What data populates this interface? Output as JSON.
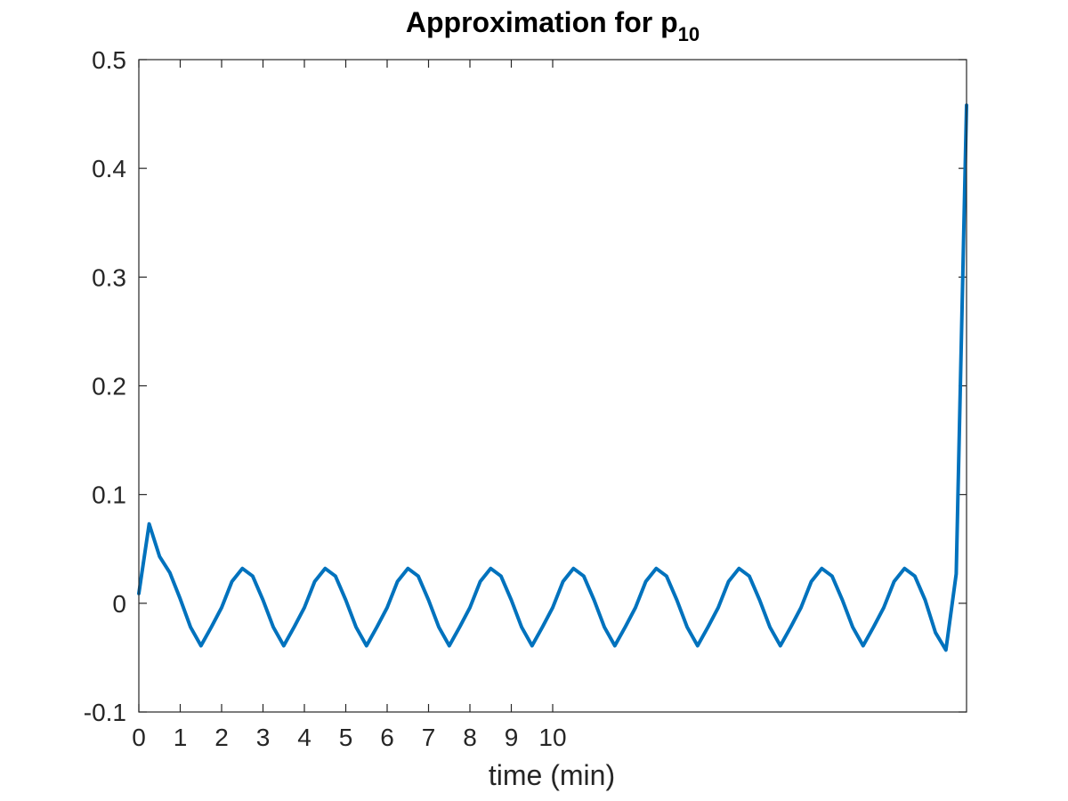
{
  "chart_data": {
    "type": "line",
    "title": "Approximation for p",
    "title_subscript": "10",
    "xlabel": "time (min)",
    "ylabel": "",
    "xlim": [
      0,
      20
    ],
    "ylim": [
      -0.1,
      0.5
    ],
    "xticks": [
      0,
      1,
      2,
      3,
      4,
      5,
      6,
      7,
      8,
      9,
      10
    ],
    "xtick_labels": [
      "0",
      "1",
      "2",
      "3",
      "4",
      "5",
      "6",
      "7",
      "8",
      "9",
      "10"
    ],
    "yticks": [
      -0.1,
      0,
      0.1,
      0.2,
      0.3,
      0.4,
      0.5
    ],
    "ytick_labels": [
      "-0.1",
      "0",
      "0.1",
      "0.2",
      "0.3",
      "0.4",
      "0.5"
    ],
    "grid": false,
    "series": [
      {
        "color": "#0072BD",
        "x": [
          0,
          0.25,
          0.5,
          0.75,
          1.0,
          1.25,
          1.5,
          1.75,
          2.0,
          2.25,
          2.5,
          2.75,
          3.0,
          3.25,
          3.5,
          3.75,
          4.0,
          4.25,
          4.5,
          4.75,
          5.0,
          5.25,
          5.5,
          5.75,
          6.0,
          6.25,
          6.5,
          6.75,
          7.0,
          7.25,
          7.5,
          7.75,
          8.0,
          8.25,
          8.5,
          8.75,
          9.0,
          9.25,
          9.5,
          9.75,
          10.0,
          10.25,
          10.5,
          10.75,
          11.0,
          11.25,
          11.5,
          11.75,
          12.0,
          12.25,
          12.5,
          12.75,
          13.0,
          13.25,
          13.5,
          13.75,
          14.0,
          14.25,
          14.5,
          14.75,
          15.0,
          15.25,
          15.5,
          15.75,
          16.0,
          16.25,
          16.5,
          16.75,
          17.0,
          17.25,
          17.5,
          17.75,
          18.0,
          18.25,
          18.5,
          18.75,
          19.0,
          19.25,
          19.5,
          19.75,
          20.0
        ],
        "y": [
          0.009,
          0.073,
          0.043,
          0.028,
          0.004,
          -0.022,
          -0.039,
          -0.022,
          -0.004,
          0.02,
          0.032,
          0.025,
          0.003,
          -0.022,
          -0.039,
          -0.022,
          -0.004,
          0.02,
          0.032,
          0.025,
          0.003,
          -0.022,
          -0.039,
          -0.022,
          -0.004,
          0.02,
          0.032,
          0.025,
          0.003,
          -0.022,
          -0.039,
          -0.022,
          -0.004,
          0.02,
          0.032,
          0.025,
          0.003,
          -0.022,
          -0.039,
          -0.022,
          -0.004,
          0.02,
          0.032,
          0.025,
          0.003,
          -0.022,
          -0.039,
          -0.022,
          -0.004,
          0.02,
          0.032,
          0.025,
          0.003,
          -0.022,
          -0.039,
          -0.022,
          -0.004,
          0.02,
          0.032,
          0.025,
          0.003,
          -0.022,
          -0.039,
          -0.022,
          -0.004,
          0.02,
          0.032,
          0.025,
          0.003,
          -0.022,
          -0.039,
          -0.022,
          -0.004,
          0.02,
          0.032,
          0.025,
          0.003,
          -0.027,
          -0.043,
          0.027,
          0.458
        ]
      }
    ]
  }
}
